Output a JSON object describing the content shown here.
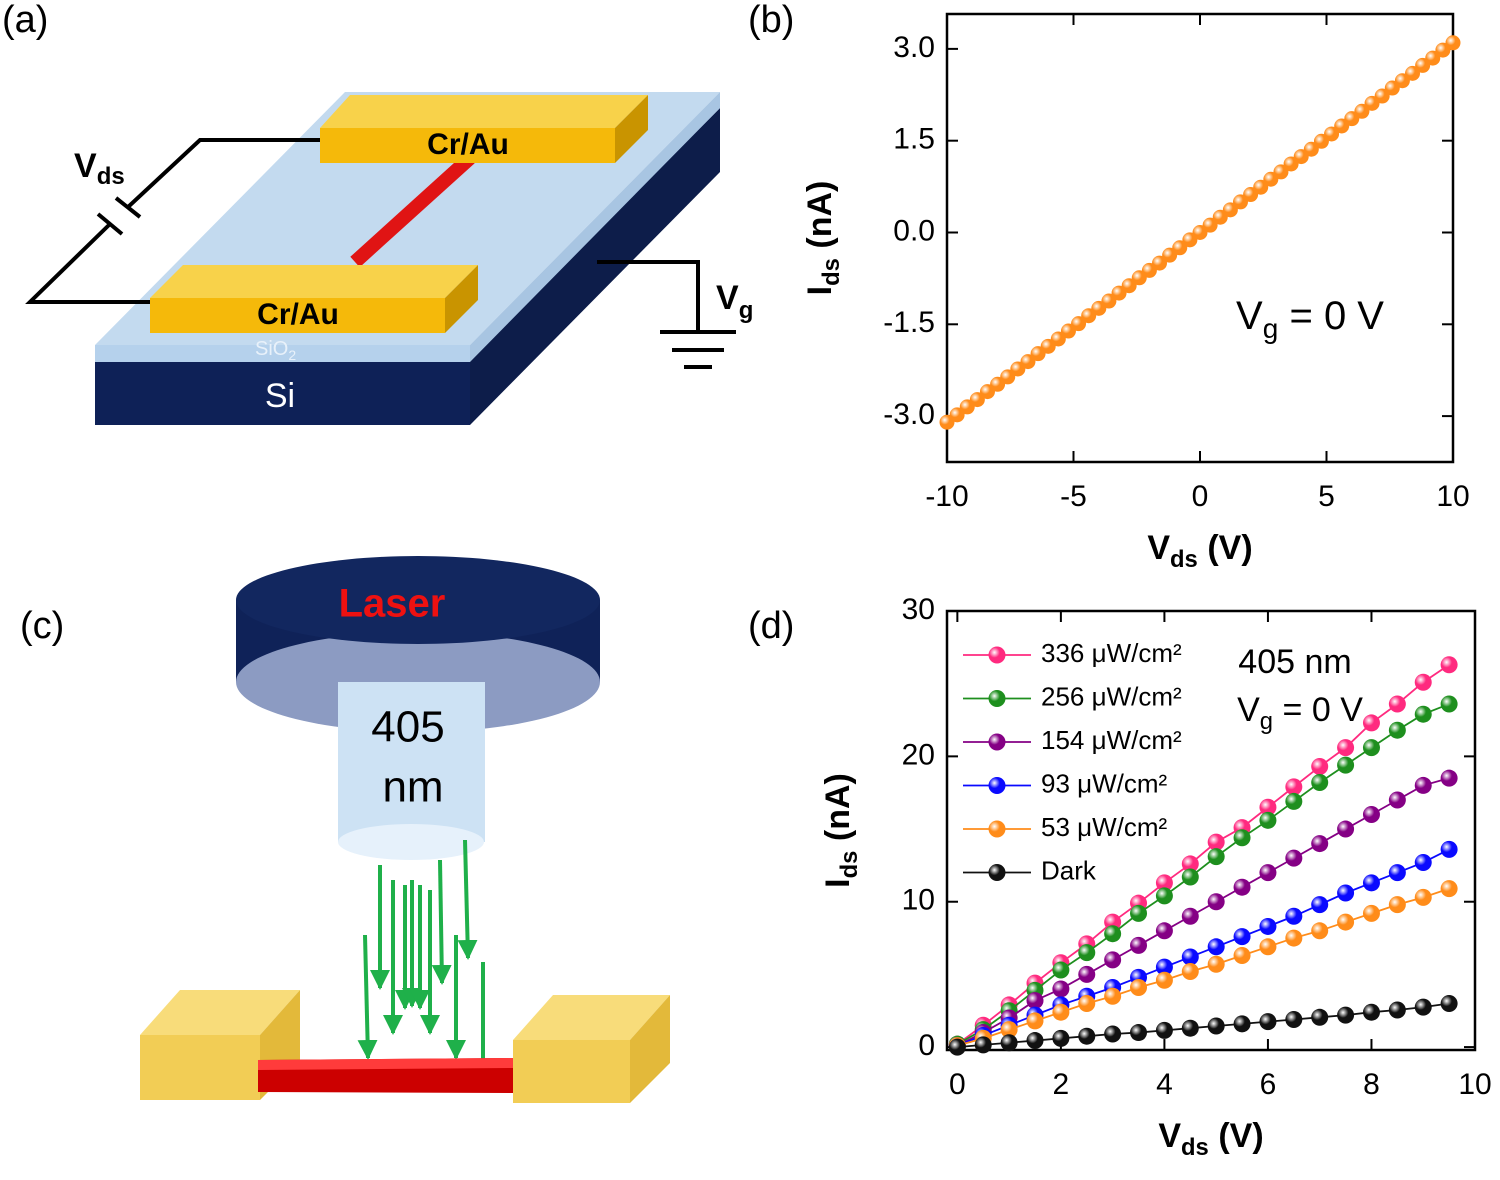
{
  "panel_labels": [
    "(a)",
    "(b)",
    "(c)",
    "(d)"
  ],
  "diagram_a": {
    "electrodes": [
      "Cr/Au",
      "Cr/Au"
    ],
    "vds": [
      "V",
      "ds"
    ],
    "vg": [
      "V",
      "g"
    ],
    "oxide": [
      "SiO",
      "2"
    ],
    "substrate": "Si"
  },
  "diagram_c": {
    "source": "Laser",
    "wavelength": [
      "405",
      "nm"
    ]
  },
  "chart_data": [
    {
      "type": "line",
      "color": "#ff8c1a",
      "x": [
        -10,
        -9.6,
        -9.2,
        -8.8,
        -8.4,
        -8,
        -7.6,
        -7.2,
        -6.8,
        -6.4,
        -6,
        -5.6,
        -5.2,
        -4.8,
        -4.4,
        -4,
        -3.6,
        -3.2,
        -2.8,
        -2.4,
        -2,
        -1.6,
        -1.2,
        -0.8,
        -0.4,
        0,
        0.4,
        0.8,
        1.2,
        1.6,
        2,
        2.4,
        2.8,
        3.2,
        3.6,
        4,
        4.4,
        4.8,
        5.2,
        5.6,
        6,
        6.4,
        6.8,
        7.2,
        7.6,
        8,
        8.4,
        8.8,
        9.2,
        9.6,
        10
      ],
      "values": [
        -3.1,
        -2.98,
        -2.85,
        -2.73,
        -2.6,
        -2.48,
        -2.36,
        -2.23,
        -2.11,
        -1.98,
        -1.86,
        -1.74,
        -1.61,
        -1.49,
        -1.36,
        -1.24,
        -1.12,
        -0.99,
        -0.87,
        -0.74,
        -0.62,
        -0.5,
        -0.37,
        -0.25,
        -0.12,
        0,
        0.12,
        0.25,
        0.37,
        0.5,
        0.62,
        0.74,
        0.87,
        0.99,
        1.12,
        1.24,
        1.36,
        1.49,
        1.61,
        1.74,
        1.86,
        1.98,
        2.11,
        2.23,
        2.36,
        2.48,
        2.6,
        2.73,
        2.85,
        2.98,
        3.1
      ],
      "xlim": [
        -10,
        10
      ],
      "ylim": [
        -3.75,
        3.57
      ],
      "xticks": [
        -10,
        -5,
        0,
        5,
        10
      ],
      "yticks": [
        {
          "value": -3,
          "label": "-3.0"
        },
        {
          "value": -1.5,
          "label": "-1.5"
        },
        {
          "value": 0,
          "label": "0.0"
        },
        {
          "value": 1.5,
          "label": "1.5"
        },
        {
          "value": 3,
          "label": "3.0"
        }
      ],
      "xlabel": {
        "symbol": "V",
        "subscript": "ds",
        "rest": "(V)"
      },
      "ylabel": {
        "symbol": "I",
        "subscript": "ds",
        "rest": "(nA)"
      },
      "annotations": [
        {
          "symbol": "V",
          "subscript": "g",
          "rest": "= 0 V"
        }
      ]
    },
    {
      "type": "line",
      "legend": "upper left",
      "x": [
        0,
        0.5,
        1,
        1.5,
        2,
        2.5,
        3,
        3.5,
        4,
        4.5,
        5,
        5.5,
        6,
        6.5,
        7,
        7.5,
        8,
        8.5,
        9,
        9.5
      ],
      "series": [
        {
          "name": "336 μW/cm²",
          "color": "#ff2a7f",
          "values": [
            0.2,
            1.5,
            2.9,
            4.4,
            5.8,
            7.1,
            8.6,
            9.9,
            11.3,
            12.6,
            14.1,
            15.1,
            16.5,
            17.9,
            19.3,
            20.6,
            22.3,
            23.6,
            25.1,
            26.3
          ]
        },
        {
          "name": "256 μW/cm²",
          "color": "#1e8f1e",
          "values": [
            0.2,
            1.2,
            2.5,
            3.9,
            5.3,
            6.5,
            7.8,
            9.2,
            10.4,
            11.7,
            13.1,
            14.4,
            15.6,
            16.9,
            18.2,
            19.4,
            20.6,
            21.8,
            22.9,
            23.6
          ]
        },
        {
          "name": "154 μW/cm²",
          "color": "#850085",
          "values": [
            0.1,
            1.0,
            2.0,
            3.2,
            4.0,
            5.0,
            6.0,
            7.0,
            8.0,
            9.0,
            10.0,
            11.0,
            12.0,
            13.0,
            14.0,
            15.0,
            16.0,
            17.0,
            18.0,
            18.5
          ]
        },
        {
          "name": "93 μW/cm²",
          "color": "#0a0aff",
          "values": [
            0.1,
            0.8,
            1.5,
            2.2,
            2.9,
            3.5,
            4.1,
            4.8,
            5.5,
            6.2,
            6.9,
            7.6,
            8.3,
            9.0,
            9.8,
            10.6,
            11.3,
            12.0,
            12.7,
            13.6
          ]
        },
        {
          "name": "53 μW/cm²",
          "color": "#ff8c1a",
          "values": [
            0.1,
            0.6,
            1.2,
            1.8,
            2.4,
            3.0,
            3.5,
            4.1,
            4.6,
            5.2,
            5.7,
            6.3,
            6.9,
            7.5,
            8.0,
            8.6,
            9.2,
            9.8,
            10.3,
            10.9
          ]
        },
        {
          "name": "Dark",
          "color": "#111111",
          "values": [
            0,
            0.15,
            0.3,
            0.45,
            0.6,
            0.75,
            0.9,
            1.0,
            1.15,
            1.3,
            1.45,
            1.6,
            1.75,
            1.9,
            2.05,
            2.2,
            2.4,
            2.55,
            2.75,
            3.0
          ]
        }
      ],
      "xlim": [
        -0.2,
        10
      ],
      "ylim": [
        -0.2,
        30
      ],
      "xticks": [
        0,
        2,
        4,
        6,
        8,
        10
      ],
      "yticks": [
        0,
        10,
        20,
        30
      ],
      "xlabel": {
        "symbol": "V",
        "subscript": "ds",
        "rest": "(V)"
      },
      "ylabel": {
        "symbol": "I",
        "subscript": "ds",
        "rest": "(nA)"
      },
      "annotations": [
        {
          "text": "405 nm"
        },
        {
          "symbol": "V",
          "subscript": "g",
          "rest": "= 0 V"
        }
      ]
    }
  ]
}
